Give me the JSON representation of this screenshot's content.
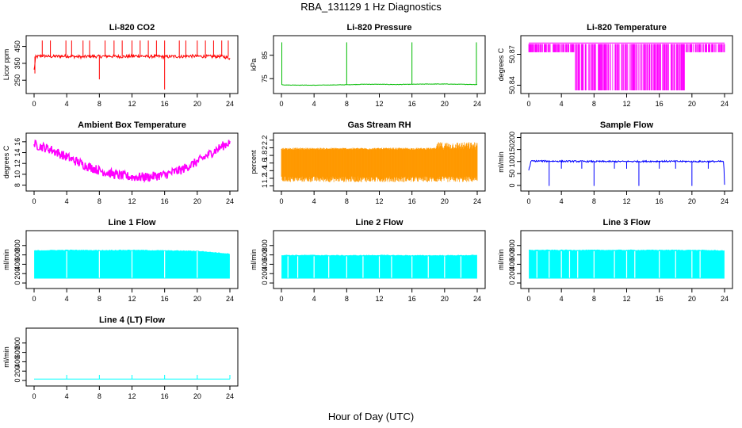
{
  "figure": {
    "title": "RBA_131129  1 Hz Diagnostics",
    "xlabel": "Hour of Day (UTC)"
  },
  "chart_data": [
    {
      "type": "line",
      "title": "Li-820 CO2",
      "ylabel": "Licor ppm",
      "color": "#ff0000",
      "xlim": [
        0,
        24
      ],
      "ylim": [
        190,
        495
      ],
      "xticks": [
        0,
        4,
        8,
        12,
        16,
        20,
        24
      ],
      "yticks": [
        250,
        350,
        450
      ],
      "series": [
        {
          "x": [
            0,
            0.2,
            1,
            2,
            3,
            4,
            5,
            6,
            7,
            8,
            9,
            10,
            11,
            12,
            13,
            14,
            15,
            16,
            17,
            18,
            19,
            20,
            21,
            22,
            23,
            24
          ],
          "y": [
            310,
            388,
            395,
            390,
            392,
            393,
            390,
            388,
            392,
            390,
            393,
            391,
            390,
            392,
            394,
            390,
            392,
            388,
            391,
            390,
            393,
            392,
            391,
            390,
            392,
            380
          ]
        }
      ]
    },
    {
      "type": "line",
      "title": "Li-820 Pressure",
      "ylabel": "kPa",
      "color": "#00bb00",
      "xlim": [
        0,
        24
      ],
      "ylim": [
        70,
        92
      ],
      "xticks": [
        0,
        4,
        8,
        12,
        16,
        20,
        24
      ],
      "yticks": [
        75,
        85
      ],
      "series": [
        {
          "x": [
            0,
            0.5,
            4,
            8,
            10,
            12,
            14,
            16,
            18,
            20,
            22,
            24
          ],
          "y": [
            72.5,
            72.3,
            72.2,
            72.4,
            72.6,
            72.6,
            72.5,
            72.6,
            72.7,
            72.7,
            72.6,
            72.5
          ]
        }
      ]
    },
    {
      "type": "line",
      "title": "Li-820 Temperature",
      "ylabel": "degrees C",
      "color": "#ff00ff",
      "xlim": [
        0,
        24
      ],
      "ylim": [
        50.835,
        50.885
      ],
      "xticks": [
        0,
        4,
        8,
        12,
        16,
        20,
        24
      ],
      "yticks": [
        50.84,
        50.87
      ],
      "series": [
        {
          "x": [
            0,
            4,
            8,
            12,
            16,
            20,
            24
          ],
          "y": [
            50.879,
            50.872,
            50.862,
            50.858,
            50.86,
            50.87,
            50.879
          ]
        }
      ]
    },
    {
      "type": "line",
      "title": "Ambient Box Temperature",
      "ylabel": "degrees C",
      "color": "#ff00ff",
      "xlim": [
        0,
        24
      ],
      "ylim": [
        7.5,
        17
      ],
      "xticks": [
        0,
        4,
        8,
        12,
        16,
        20,
        24
      ],
      "yticks": [
        8,
        10,
        12,
        14,
        16
      ],
      "series": [
        {
          "x": [
            0,
            2,
            4,
            6,
            8,
            10,
            12,
            14,
            16,
            18,
            20,
            22,
            24
          ],
          "y": [
            15.5,
            14.6,
            13.2,
            11.8,
            10.7,
            9.9,
            9.5,
            9.5,
            9.9,
            10.8,
            12.3,
            14.2,
            16.0
          ]
        }
      ]
    },
    {
      "type": "line",
      "title": "Gas Stream RH",
      "ylabel": "percent",
      "color": "#ff9900",
      "xlim": [
        0,
        24
      ],
      "ylim": [
        0.95,
        2.3
      ],
      "xticks": [
        0,
        4,
        8,
        12,
        16,
        20,
        24
      ],
      "yticks": [
        1.0,
        1.2,
        1.4,
        1.6,
        1.8,
        2.0,
        2.2
      ],
      "series": [
        {
          "x": [
            0,
            4,
            8,
            12,
            16,
            20,
            24
          ],
          "y": [
            1.55,
            1.55,
            1.55,
            1.56,
            1.56,
            1.58,
            1.6
          ]
        }
      ]
    },
    {
      "type": "line",
      "title": "Sample Flow",
      "ylabel": "ml/min",
      "color": "#0000ff",
      "xlim": [
        0,
        24
      ],
      "ylim": [
        -10,
        205
      ],
      "xticks": [
        0,
        4,
        8,
        12,
        16,
        20,
        24
      ],
      "yticks": [
        0,
        50,
        100,
        150,
        200
      ],
      "series": [
        {
          "x": [
            0,
            0.3,
            4,
            8,
            12,
            16,
            20,
            23.9,
            24
          ],
          "y": [
            65,
            102,
            101,
            100,
            100,
            101,
            100,
            100,
            0
          ]
        }
      ]
    },
    {
      "type": "line",
      "title": "Line 1 Flow",
      "ylabel": "ml/min",
      "color": "#00ffff",
      "xlim": [
        0,
        24
      ],
      "ylim": [
        -50,
        1050
      ],
      "xticks": [
        0,
        4,
        8,
        12,
        16,
        20,
        24
      ],
      "yticks": [
        0,
        200,
        400,
        600,
        800
      ],
      "series": [
        {
          "x": [
            0,
            4,
            8,
            12,
            16,
            20,
            24
          ],
          "y": [
            690,
            700,
            695,
            700,
            690,
            680,
            620
          ]
        }
      ]
    },
    {
      "type": "line",
      "title": "Line 2 Flow",
      "ylabel": "ml/min",
      "color": "#00ffff",
      "xlim": [
        0,
        24
      ],
      "ylim": [
        -50,
        1050
      ],
      "xticks": [
        0,
        4,
        8,
        12,
        16,
        20,
        24
      ],
      "yticks": [
        0,
        200,
        400,
        600,
        800
      ],
      "series": [
        {
          "x": [
            0,
            4,
            8,
            12,
            16,
            20,
            24
          ],
          "y": [
            590,
            590,
            585,
            590,
            585,
            585,
            590
          ]
        }
      ]
    },
    {
      "type": "line",
      "title": "Line 3 Flow",
      "ylabel": "ml/min",
      "color": "#00ffff",
      "xlim": [
        0,
        24
      ],
      "ylim": [
        -50,
        1050
      ],
      "xticks": [
        0,
        4,
        8,
        12,
        16,
        20,
        24
      ],
      "yticks": [
        0,
        200,
        400,
        600,
        800
      ],
      "series": [
        {
          "x": [
            0,
            4,
            8,
            12,
            16,
            20,
            24
          ],
          "y": [
            700,
            700,
            700,
            700,
            700,
            700,
            690
          ]
        }
      ]
    },
    {
      "type": "line",
      "title": "Line 4 (LT) Flow",
      "ylabel": "ml/min",
      "color": "#00ffff",
      "xlim": [
        0,
        24
      ],
      "ylim": [
        -50,
        1050
      ],
      "xticks": [
        0,
        4,
        8,
        12,
        16,
        20,
        24
      ],
      "yticks": [
        0,
        200,
        400,
        600,
        800
      ],
      "series": [
        {
          "x": [
            0,
            4,
            8,
            12,
            16,
            20,
            24
          ],
          "y": [
            30,
            30,
            30,
            30,
            30,
            30,
            30
          ]
        }
      ]
    }
  ]
}
